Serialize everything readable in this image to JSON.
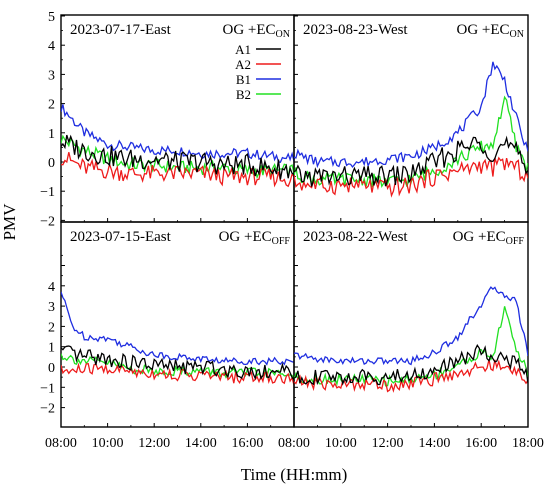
{
  "figure": {
    "y_axis_label": "PMV",
    "x_axis_label": "Time (HH:mm)"
  },
  "legend": {
    "entries": [
      {
        "label": "A1",
        "color": "#000000"
      },
      {
        "label": "A2",
        "color": "#ee1c1c"
      },
      {
        "label": "B1",
        "color": "#1f2ee0"
      },
      {
        "label": "B2",
        "color": "#22e022"
      }
    ]
  },
  "chart_data": [
    {
      "type": "line",
      "title": "2023-07-17-East",
      "condition_main": "OG +EC",
      "condition_sub": "ON",
      "x_ticks": [
        "08:00",
        "10:00",
        "12:00",
        "14:00",
        "16:00"
      ],
      "x_range": [
        "08:00",
        "18:00"
      ],
      "ylim": [
        -2,
        5
      ],
      "y_ticks": [
        -2,
        -1,
        0,
        1,
        2,
        3,
        4,
        5
      ],
      "x": [
        "08:00",
        "09:00",
        "10:00",
        "11:00",
        "12:00",
        "13:00",
        "14:00",
        "15:00",
        "16:00",
        "17:00",
        "18:00"
      ],
      "series": [
        {
          "name": "A1",
          "values": [
            0.7,
            0.4,
            0.2,
            0.1,
            0.1,
            0.0,
            0.0,
            -0.1,
            -0.1,
            -0.2,
            -0.3
          ]
        },
        {
          "name": "A2",
          "values": [
            0.2,
            -0.2,
            -0.3,
            -0.4,
            -0.4,
            -0.4,
            -0.4,
            -0.5,
            -0.5,
            -0.5,
            -0.6
          ]
        },
        {
          "name": "B1",
          "values": [
            1.9,
            1.0,
            0.6,
            0.5,
            0.4,
            0.4,
            0.3,
            0.3,
            0.3,
            0.2,
            0.1
          ]
        },
        {
          "name": "B2",
          "values": [
            0.8,
            0.4,
            0.1,
            -0.1,
            -0.1,
            -0.2,
            -0.2,
            -0.2,
            -0.3,
            -0.3,
            -0.3
          ]
        }
      ]
    },
    {
      "type": "line",
      "title": "2023-08-23-West",
      "condition_main": "OG +EC",
      "condition_sub": "ON",
      "x_ticks": [
        "08:00",
        "10:00",
        "12:00",
        "14:00",
        "16:00",
        "18:00"
      ],
      "x_range": [
        "08:00",
        "18:00"
      ],
      "ylim": [
        -2,
        5
      ],
      "x": [
        "08:00",
        "09:00",
        "10:00",
        "11:00",
        "12:00",
        "13:00",
        "14:00",
        "15:00",
        "16:00",
        "16:30",
        "17:00",
        "17:30",
        "18:00"
      ],
      "series": [
        {
          "name": "A1",
          "values": [
            -0.5,
            -0.5,
            -0.5,
            -0.5,
            -0.5,
            -0.4,
            0.0,
            0.4,
            0.7,
            0.3,
            0.6,
            0.3,
            -0.3
          ]
        },
        {
          "name": "A2",
          "values": [
            -0.7,
            -0.8,
            -0.8,
            -0.8,
            -0.9,
            -0.8,
            -0.5,
            -0.3,
            -0.1,
            -0.2,
            0.0,
            -0.2,
            -0.5
          ]
        },
        {
          "name": "B1",
          "values": [
            0.3,
            0.0,
            0.0,
            0.0,
            0.1,
            0.2,
            0.5,
            1.0,
            1.9,
            3.4,
            2.8,
            1.5,
            0.3
          ]
        },
        {
          "name": "B2",
          "values": [
            -0.4,
            -0.6,
            -0.6,
            -0.6,
            -0.7,
            -0.6,
            -0.3,
            0.1,
            0.5,
            0.6,
            2.2,
            0.5,
            -0.2
          ]
        }
      ]
    },
    {
      "type": "line",
      "title": "2023-07-15-East",
      "condition_main": "OG +EC",
      "condition_sub": "OFF",
      "x_ticks": [
        "08:00",
        "10:00",
        "12:00",
        "14:00",
        "16:00"
      ],
      "x_range": [
        "08:00",
        "18:00"
      ],
      "ylim": [
        -2,
        5
      ],
      "y_ticks": [
        -2,
        -1,
        0,
        1,
        2,
        3,
        4
      ],
      "x": [
        "08:00",
        "08:30",
        "09:00",
        "10:00",
        "11:00",
        "12:00",
        "13:00",
        "14:00",
        "15:00",
        "16:00",
        "17:00",
        "18:00"
      ],
      "series": [
        {
          "name": "A1",
          "values": [
            0.8,
            0.6,
            0.5,
            0.4,
            0.2,
            0.1,
            0.0,
            0.0,
            -0.1,
            -0.2,
            -0.2,
            -0.3
          ]
        },
        {
          "name": "A2",
          "values": [
            -0.2,
            -0.2,
            -0.1,
            -0.1,
            -0.2,
            -0.3,
            -0.4,
            -0.4,
            -0.5,
            -0.5,
            -0.5,
            -0.6
          ]
        },
        {
          "name": "B1",
          "values": [
            3.7,
            2.0,
            1.5,
            1.4,
            1.0,
            0.6,
            0.5,
            0.4,
            0.3,
            0.3,
            0.3,
            0.2
          ]
        },
        {
          "name": "B2",
          "values": [
            0.6,
            0.4,
            0.3,
            0.2,
            -0.1,
            -0.2,
            -0.2,
            -0.2,
            -0.3,
            -0.3,
            -0.3,
            -0.4
          ]
        }
      ]
    },
    {
      "type": "line",
      "title": "2023-08-22-West",
      "condition_main": "OG +EC",
      "condition_sub": "OFF",
      "x_ticks": [
        "08:00",
        "10:00",
        "12:00",
        "14:00",
        "16:00",
        "18:00"
      ],
      "x_range": [
        "08:00",
        "18:00"
      ],
      "ylim": [
        -2,
        5
      ],
      "x": [
        "08:00",
        "09:00",
        "10:00",
        "11:00",
        "12:00",
        "13:00",
        "14:00",
        "15:00",
        "16:00",
        "16:30",
        "17:00",
        "17:30",
        "18:00"
      ],
      "series": [
        {
          "name": "A1",
          "values": [
            -0.5,
            -0.5,
            -0.5,
            -0.5,
            -0.5,
            -0.4,
            -0.2,
            0.3,
            0.8,
            0.6,
            0.4,
            0.2,
            -0.5
          ]
        },
        {
          "name": "A2",
          "values": [
            -0.7,
            -0.8,
            -0.9,
            -0.8,
            -0.9,
            -0.8,
            -0.6,
            -0.3,
            0.0,
            0.1,
            -0.1,
            -0.2,
            -0.6
          ]
        },
        {
          "name": "B1",
          "values": [
            0.6,
            0.4,
            0.3,
            0.3,
            0.3,
            0.3,
            0.7,
            1.5,
            3.1,
            3.9,
            3.6,
            3.2,
            0.7
          ]
        },
        {
          "name": "B2",
          "values": [
            -0.5,
            -0.6,
            -0.6,
            -0.6,
            -0.7,
            -0.6,
            -0.4,
            0.1,
            0.7,
            0.5,
            2.9,
            0.9,
            -0.3
          ]
        }
      ]
    }
  ]
}
